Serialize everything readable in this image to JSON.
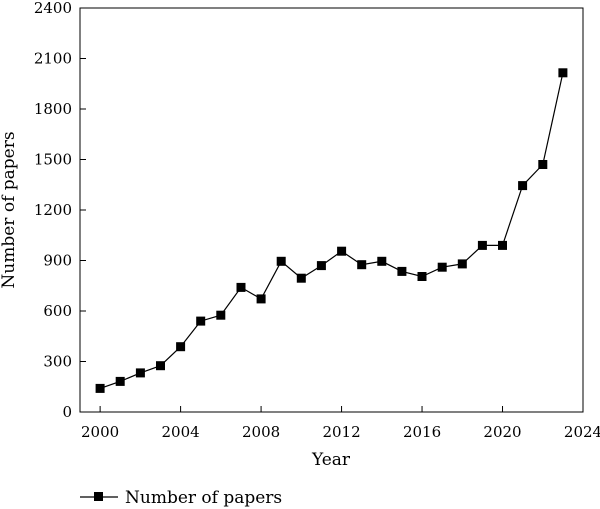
{
  "chart_data": {
    "type": "line",
    "title": "",
    "xlabel": "Year",
    "ylabel": "Number of papers",
    "xlim": [
      1999,
      2024
    ],
    "ylim": [
      0,
      2400
    ],
    "x_ticks": [
      2000,
      2004,
      2008,
      2012,
      2016,
      2020,
      2024
    ],
    "y_ticks": [
      0,
      300,
      600,
      900,
      1200,
      1500,
      1800,
      2100,
      2400
    ],
    "grid": false,
    "legend_position": "bottom-left",
    "series": [
      {
        "name": "Number of papers",
        "marker": "square",
        "color": "#000000",
        "x": [
          2000,
          2001,
          2002,
          2003,
          2004,
          2005,
          2006,
          2007,
          2008,
          2009,
          2010,
          2011,
          2012,
          2013,
          2014,
          2015,
          2016,
          2017,
          2018,
          2019,
          2020,
          2021,
          2022,
          2023
        ],
        "y": [
          140,
          182,
          232,
          275,
          388,
          540,
          575,
          740,
          672,
          895,
          795,
          870,
          955,
          875,
          895,
          835,
          805,
          860,
          880,
          990,
          990,
          1345,
          1470,
          2015
        ]
      }
    ]
  }
}
